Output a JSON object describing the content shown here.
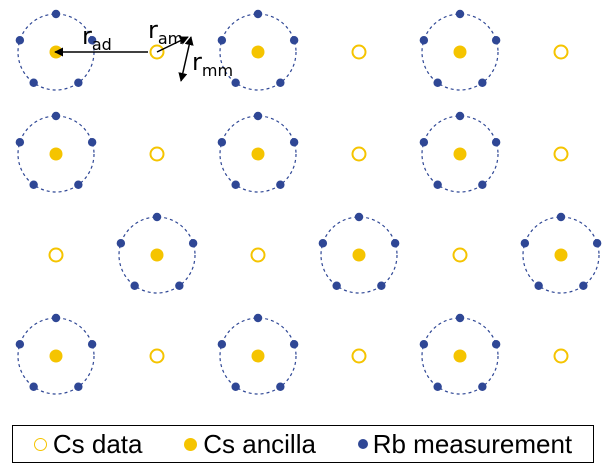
{
  "colors": {
    "cs": "#f5c400",
    "rb": "#2f4795",
    "dashed_ring": "#2f4795",
    "annotation": "#000000"
  },
  "lattice": {
    "rows": 4,
    "cols": 6,
    "row_patterns": [
      [
        "ancilla-site",
        "data-site",
        "ancilla-site",
        "data-site",
        "ancilla-site",
        "data-site"
      ],
      [
        "ancilla-site",
        "data-site",
        "ancilla-site",
        "data-site",
        "ancilla-site",
        "data-site"
      ],
      [
        "data-site",
        "ancilla-site",
        "data-site",
        "ancilla-site",
        "data-site",
        "ancilla-site"
      ],
      [
        "ancilla-site",
        "data-site",
        "ancilla-site",
        "data-site",
        "ancilla-site",
        "data-site"
      ]
    ],
    "measurement_atoms_per_ancilla": 5
  },
  "annotations": {
    "r_ad": {
      "main": "r",
      "sub": "ad"
    },
    "r_am": {
      "main": "r",
      "sub": "am"
    },
    "r_mm": {
      "main": "r",
      "sub": "mm"
    }
  },
  "legend": {
    "items": [
      {
        "key": "cs-data",
        "label": "Cs data",
        "icon": "hollow-circle-icon"
      },
      {
        "key": "cs-ancilla",
        "label": "Cs ancilla",
        "icon": "filled-circle-icon"
      },
      {
        "key": "rb-measurement",
        "label": "Rb measurement",
        "icon": "small-dot-icon"
      }
    ]
  }
}
